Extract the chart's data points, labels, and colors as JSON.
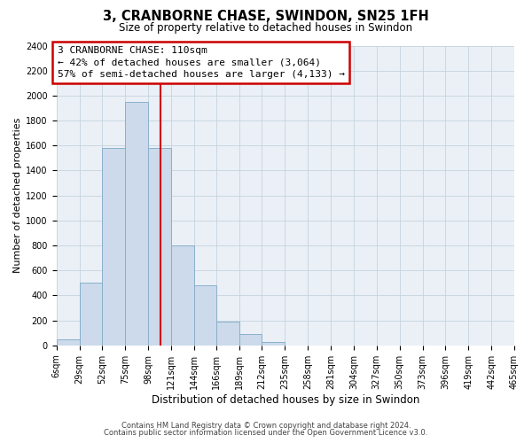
{
  "title": "3, CRANBORNE CHASE, SWINDON, SN25 1FH",
  "subtitle": "Size of property relative to detached houses in Swindon",
  "xlabel": "Distribution of detached houses by size in Swindon",
  "ylabel": "Number of detached properties",
  "footnote1": "Contains HM Land Registry data © Crown copyright and database right 2024.",
  "footnote2": "Contains public sector information licensed under the Open Government Licence v3.0.",
  "annotation_line1": "3 CRANBORNE CHASE: 110sqm",
  "annotation_line2": "← 42% of detached houses are smaller (3,064)",
  "annotation_line3": "57% of semi-detached houses are larger (4,133) →",
  "property_size": 110,
  "bin_edges": [
    6,
    29,
    52,
    75,
    98,
    121,
    144,
    166,
    189,
    212,
    235,
    258,
    281,
    304,
    327,
    350,
    373,
    396,
    419,
    442,
    465
  ],
  "bin_counts": [
    50,
    500,
    1580,
    1950,
    1580,
    800,
    480,
    190,
    90,
    30,
    0,
    0,
    0,
    0,
    0,
    0,
    0,
    0,
    0,
    0
  ],
  "bar_face_color": "#ccdaeb",
  "bar_edge_color": "#8ab0cc",
  "vline_color": "#cc0000",
  "ylim_max": 2400,
  "ytick_step": 200,
  "bg_color": "#eaf0f6",
  "grid_color": "#c5d3de",
  "annotation_box_edge_color": "#cc0000",
  "tick_labels": [
    "6sqm",
    "29sqm",
    "52sqm",
    "75sqm",
    "98sqm",
    "121sqm",
    "144sqm",
    "166sqm",
    "189sqm",
    "212sqm",
    "235sqm",
    "258sqm",
    "281sqm",
    "304sqm",
    "327sqm",
    "350sqm",
    "373sqm",
    "396sqm",
    "419sqm",
    "442sqm",
    "465sqm"
  ],
  "footnote_color": "#444444",
  "title_fontsize": 10.5,
  "subtitle_fontsize": 8.5,
  "xlabel_fontsize": 8.5,
  "ylabel_fontsize": 8,
  "tick_fontsize": 7,
  "annot_fontsize": 8,
  "footnote_fontsize": 6
}
